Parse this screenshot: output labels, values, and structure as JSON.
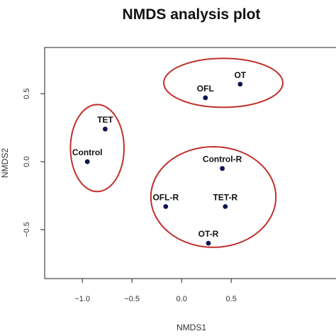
{
  "chart_data": {
    "type": "scatter",
    "title": "NMDS analysis plot",
    "xlabel": "NMDS1",
    "ylabel": "NMDS2",
    "xlim": [
      -1.38,
      1.62
    ],
    "ylim": [
      -0.86,
      0.84
    ],
    "x_ticks": [
      {
        "value": -1.0,
        "label": "−1.0"
      },
      {
        "value": -0.5,
        "label": "−0.5"
      },
      {
        "value": 0.0,
        "label": "0.0"
      },
      {
        "value": 0.5,
        "label": "0.5"
      }
    ],
    "y_ticks": [
      {
        "value": -0.5,
        "label": "−0.5"
      },
      {
        "value": 0.0,
        "label": "0.0"
      },
      {
        "value": 0.5,
        "label": "0.5"
      }
    ],
    "grid": false,
    "points": [
      {
        "label": "OT",
        "x": 0.59,
        "y": 0.57
      },
      {
        "label": "OFL",
        "x": 0.24,
        "y": 0.47
      },
      {
        "label": "TET",
        "x": -0.77,
        "y": 0.24
      },
      {
        "label": "Control",
        "x": -0.95,
        "y": 0.0
      },
      {
        "label": "Control-R",
        "x": 0.41,
        "y": -0.05
      },
      {
        "label": "OFL-R",
        "x": -0.16,
        "y": -0.33
      },
      {
        "label": "TET-R",
        "x": 0.44,
        "y": -0.33
      },
      {
        "label": "OT-R",
        "x": 0.27,
        "y": -0.6
      }
    ],
    "groups": [
      {
        "name": "group-ofl-ot",
        "cx": 0.42,
        "cy": 0.58,
        "rx": 0.6,
        "ry": 0.18
      },
      {
        "name": "group-tet-control",
        "cx": -0.85,
        "cy": 0.1,
        "rx": 0.27,
        "ry": 0.32
      },
      {
        "name": "group-resistant",
        "cx": 0.32,
        "cy": -0.26,
        "rx": 0.63,
        "ry": 0.37
      }
    ],
    "colors": {
      "point": "#0f1450",
      "ellipse": "#c0302b",
      "axis": "#222222"
    }
  }
}
